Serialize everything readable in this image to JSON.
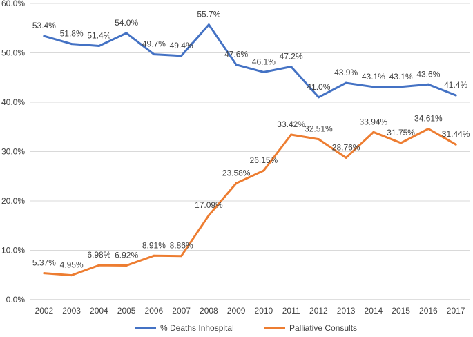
{
  "chart_data": {
    "type": "line",
    "title": "",
    "xlabel": "",
    "ylabel": "",
    "ylim": [
      0,
      60
    ],
    "y_ticks": [
      0,
      10,
      20,
      30,
      40,
      50,
      60
    ],
    "y_tick_labels": [
      "0.0%",
      "10.0%",
      "20.0%",
      "30.0%",
      "40.0%",
      "50.0%",
      "60.0%"
    ],
    "grid": "horizontal",
    "legend_position": "bottom",
    "categories": [
      "2002",
      "2003",
      "2004",
      "2005",
      "2006",
      "2007",
      "2008",
      "2009",
      "2010",
      "2011",
      "2012",
      "2013",
      "2014",
      "2015",
      "2016",
      "2017"
    ],
    "series": [
      {
        "name": "% Deaths Inhospital",
        "color": "#4472C4",
        "values": [
          53.4,
          51.8,
          51.4,
          54.0,
          49.7,
          49.4,
          55.7,
          47.6,
          46.1,
          47.2,
          41.0,
          43.9,
          43.1,
          43.1,
          43.6,
          41.4
        ],
        "labels": [
          "53.4%",
          "51.8%",
          "51.4%",
          "54.0%",
          "49.7%",
          "49.4%",
          "55.7%",
          "47.6%",
          "46.1%",
          "47.2%",
          "41.0%",
          "43.9%",
          "43.1%",
          "43.1%",
          "43.6%",
          "41.4%"
        ]
      },
      {
        "name": "Palliative Consults",
        "color": "#ED7D31",
        "values": [
          5.37,
          4.95,
          6.98,
          6.92,
          8.91,
          8.86,
          17.09,
          23.58,
          26.15,
          33.42,
          32.51,
          28.76,
          33.94,
          31.75,
          34.61,
          31.44
        ],
        "labels": [
          "5.37%",
          "4.95%",
          "6.98%",
          "6.92%",
          "8.91%",
          "8.86%",
          "17.09%",
          "23.58%",
          "26.15%",
          "33.42%",
          "32.51%",
          "28.76%",
          "33.94%",
          "31.75%",
          "34.61%",
          "31.44%"
        ]
      }
    ]
  }
}
